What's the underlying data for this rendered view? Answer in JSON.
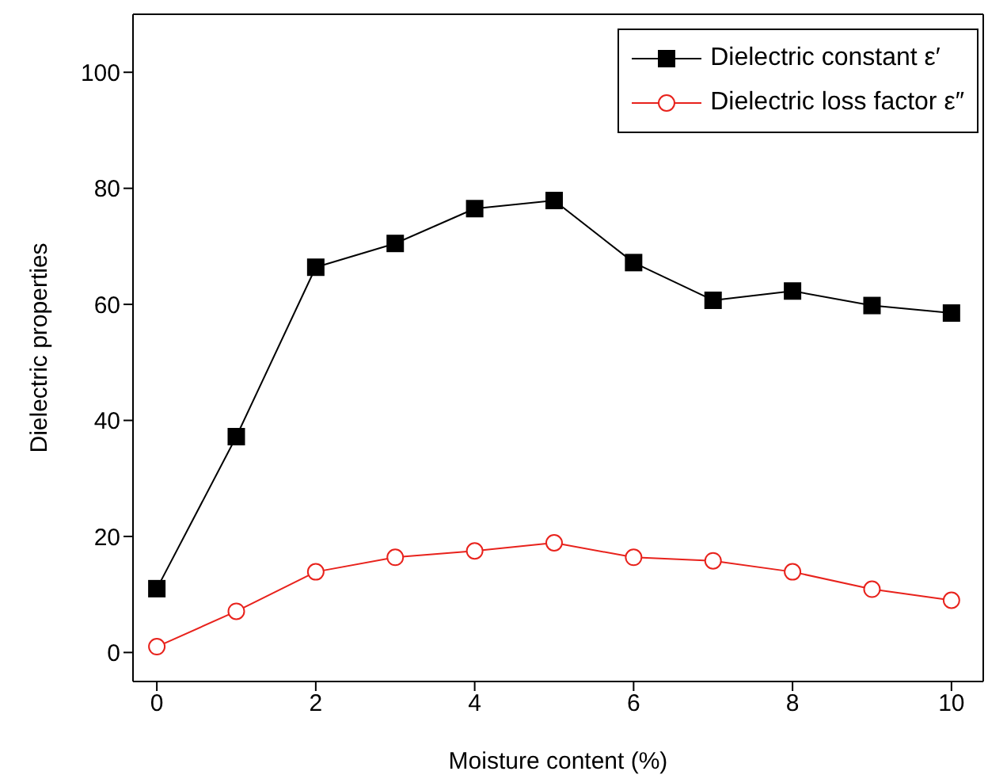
{
  "chart_data": {
    "type": "line",
    "xlabel": "Moisture content (%)",
    "ylabel": "Dielectric properties",
    "x": [
      0,
      1,
      2,
      3,
      4,
      5,
      6,
      7,
      8,
      9,
      10
    ],
    "series": [
      {
        "name": "Dielectric constant ε′",
        "color": "#000000",
        "marker": "square",
        "values": [
          11,
          37.2,
          66.4,
          70.5,
          76.5,
          77.9,
          67.2,
          60.7,
          62.3,
          59.8,
          58.5
        ]
      },
      {
        "name": "Dielectric loss factor ε″",
        "color": "#e8221c",
        "marker": "circle",
        "values": [
          1,
          7.1,
          13.9,
          16.4,
          17.5,
          18.9,
          16.4,
          15.8,
          13.9,
          10.9,
          9
        ]
      }
    ],
    "xlim": [
      -0.3,
      10.4
    ],
    "xticks": [
      0,
      2,
      4,
      6,
      8,
      10
    ],
    "ylim": [
      -5,
      110
    ],
    "yticks": [
      0,
      20,
      40,
      60,
      80,
      100
    ],
    "grid": false,
    "legend": "top right",
    "line_style": "solid"
  }
}
